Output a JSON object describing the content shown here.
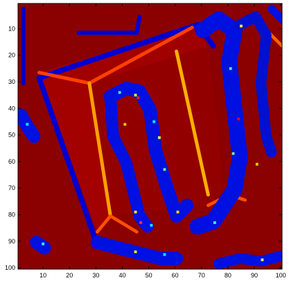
{
  "chart_data": {
    "type": "heatmap",
    "xlim": [
      0.5,
      100.5
    ],
    "ylim": [
      0.5,
      100.5
    ],
    "y_direction": "reverse",
    "xticks": [
      10,
      20,
      30,
      40,
      50,
      60,
      70,
      80,
      90,
      100
    ],
    "yticks": [
      10,
      20,
      30,
      40,
      50,
      60,
      70,
      80,
      90,
      100
    ],
    "colormap": "jet"
  }
}
